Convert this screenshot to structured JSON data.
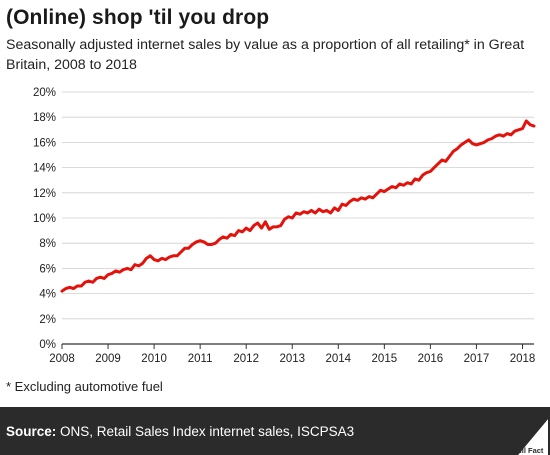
{
  "header": {
    "title": "(Online) shop 'til you drop",
    "subtitle": "Seasonally adjusted internet sales by value as a proportion of all retailing* in Great Britain, 2008 to 2018"
  },
  "footnote": "* Excluding automotive fuel",
  "footer": {
    "source_label": "Source:",
    "source_text": " ONS, Retail Sales Index internet sales, ISCPSA3",
    "logo_text": "Full Fact"
  },
  "colors": {
    "line": "#e3120b",
    "footer_bg": "#2b2b2b"
  },
  "chart_data": {
    "type": "line",
    "title": "",
    "xlabel": "",
    "ylabel": "",
    "xlim": [
      2008,
      2018.25
    ],
    "ylim": [
      0,
      20
    ],
    "x_ticks": [
      2008,
      2009,
      2010,
      2011,
      2012,
      2013,
      2014,
      2015,
      2016,
      2017,
      2018
    ],
    "y_ticks": [
      0,
      2,
      4,
      6,
      8,
      10,
      12,
      14,
      16,
      18,
      20
    ],
    "y_tick_labels": [
      "0%",
      "2%",
      "4%",
      "6%",
      "8%",
      "10%",
      "12%",
      "14%",
      "16%",
      "18%",
      "20%"
    ],
    "grid": "horizontal",
    "legend": "none",
    "series": [
      {
        "color": "#e3120b",
        "points": [
          [
            2008.0,
            4.2
          ],
          [
            2008.083,
            4.4
          ],
          [
            2008.167,
            4.5
          ],
          [
            2008.25,
            4.4
          ],
          [
            2008.333,
            4.6
          ],
          [
            2008.417,
            4.6
          ],
          [
            2008.5,
            4.9
          ],
          [
            2008.583,
            5.0
          ],
          [
            2008.667,
            4.9
          ],
          [
            2008.75,
            5.2
          ],
          [
            2008.833,
            5.3
          ],
          [
            2008.917,
            5.2
          ],
          [
            2009.0,
            5.5
          ],
          [
            2009.083,
            5.6
          ],
          [
            2009.167,
            5.8
          ],
          [
            2009.25,
            5.7
          ],
          [
            2009.333,
            5.9
          ],
          [
            2009.417,
            6.0
          ],
          [
            2009.5,
            5.9
          ],
          [
            2009.583,
            6.3
          ],
          [
            2009.667,
            6.2
          ],
          [
            2009.75,
            6.4
          ],
          [
            2009.833,
            6.8
          ],
          [
            2009.917,
            7.0
          ],
          [
            2010.0,
            6.7
          ],
          [
            2010.083,
            6.6
          ],
          [
            2010.167,
            6.8
          ],
          [
            2010.25,
            6.7
          ],
          [
            2010.333,
            6.9
          ],
          [
            2010.417,
            7.0
          ],
          [
            2010.5,
            7.0
          ],
          [
            2010.583,
            7.3
          ],
          [
            2010.667,
            7.6
          ],
          [
            2010.75,
            7.6
          ],
          [
            2010.833,
            7.9
          ],
          [
            2010.917,
            8.1
          ],
          [
            2011.0,
            8.2
          ],
          [
            2011.083,
            8.1
          ],
          [
            2011.167,
            7.9
          ],
          [
            2011.25,
            7.9
          ],
          [
            2011.333,
            8.0
          ],
          [
            2011.417,
            8.3
          ],
          [
            2011.5,
            8.5
          ],
          [
            2011.583,
            8.4
          ],
          [
            2011.667,
            8.7
          ],
          [
            2011.75,
            8.6
          ],
          [
            2011.833,
            9.0
          ],
          [
            2011.917,
            8.9
          ],
          [
            2012.0,
            9.2
          ],
          [
            2012.083,
            9.0
          ],
          [
            2012.167,
            9.4
          ],
          [
            2012.25,
            9.6
          ],
          [
            2012.333,
            9.2
          ],
          [
            2012.417,
            9.7
          ],
          [
            2012.5,
            9.1
          ],
          [
            2012.583,
            9.3
          ],
          [
            2012.667,
            9.3
          ],
          [
            2012.75,
            9.4
          ],
          [
            2012.833,
            9.9
          ],
          [
            2012.917,
            10.1
          ],
          [
            2013.0,
            10.0
          ],
          [
            2013.083,
            10.4
          ],
          [
            2013.167,
            10.3
          ],
          [
            2013.25,
            10.5
          ],
          [
            2013.333,
            10.4
          ],
          [
            2013.417,
            10.6
          ],
          [
            2013.5,
            10.4
          ],
          [
            2013.583,
            10.7
          ],
          [
            2013.667,
            10.5
          ],
          [
            2013.75,
            10.6
          ],
          [
            2013.833,
            10.4
          ],
          [
            2013.917,
            10.8
          ],
          [
            2014.0,
            10.6
          ],
          [
            2014.083,
            11.1
          ],
          [
            2014.167,
            11.0
          ],
          [
            2014.25,
            11.3
          ],
          [
            2014.333,
            11.5
          ],
          [
            2014.417,
            11.4
          ],
          [
            2014.5,
            11.6
          ],
          [
            2014.583,
            11.5
          ],
          [
            2014.667,
            11.7
          ],
          [
            2014.75,
            11.6
          ],
          [
            2014.833,
            11.9
          ],
          [
            2014.917,
            12.2
          ],
          [
            2015.0,
            12.1
          ],
          [
            2015.083,
            12.3
          ],
          [
            2015.167,
            12.5
          ],
          [
            2015.25,
            12.4
          ],
          [
            2015.333,
            12.7
          ],
          [
            2015.417,
            12.6
          ],
          [
            2015.5,
            12.8
          ],
          [
            2015.583,
            12.7
          ],
          [
            2015.667,
            13.1
          ],
          [
            2015.75,
            13.0
          ],
          [
            2015.833,
            13.4
          ],
          [
            2015.917,
            13.6
          ],
          [
            2016.0,
            13.7
          ],
          [
            2016.083,
            14.0
          ],
          [
            2016.167,
            14.3
          ],
          [
            2016.25,
            14.6
          ],
          [
            2016.333,
            14.5
          ],
          [
            2016.417,
            14.9
          ],
          [
            2016.5,
            15.3
          ],
          [
            2016.583,
            15.5
          ],
          [
            2016.667,
            15.8
          ],
          [
            2016.75,
            16.0
          ],
          [
            2016.833,
            16.2
          ],
          [
            2016.917,
            15.9
          ],
          [
            2017.0,
            15.8
          ],
          [
            2017.083,
            15.9
          ],
          [
            2017.167,
            16.0
          ],
          [
            2017.25,
            16.2
          ],
          [
            2017.333,
            16.3
          ],
          [
            2017.417,
            16.5
          ],
          [
            2017.5,
            16.6
          ],
          [
            2017.583,
            16.5
          ],
          [
            2017.667,
            16.7
          ],
          [
            2017.75,
            16.6
          ],
          [
            2017.833,
            16.9
          ],
          [
            2017.917,
            17.0
          ],
          [
            2018.0,
            17.1
          ],
          [
            2018.083,
            17.7
          ],
          [
            2018.167,
            17.4
          ],
          [
            2018.25,
            17.3
          ]
        ]
      }
    ]
  }
}
